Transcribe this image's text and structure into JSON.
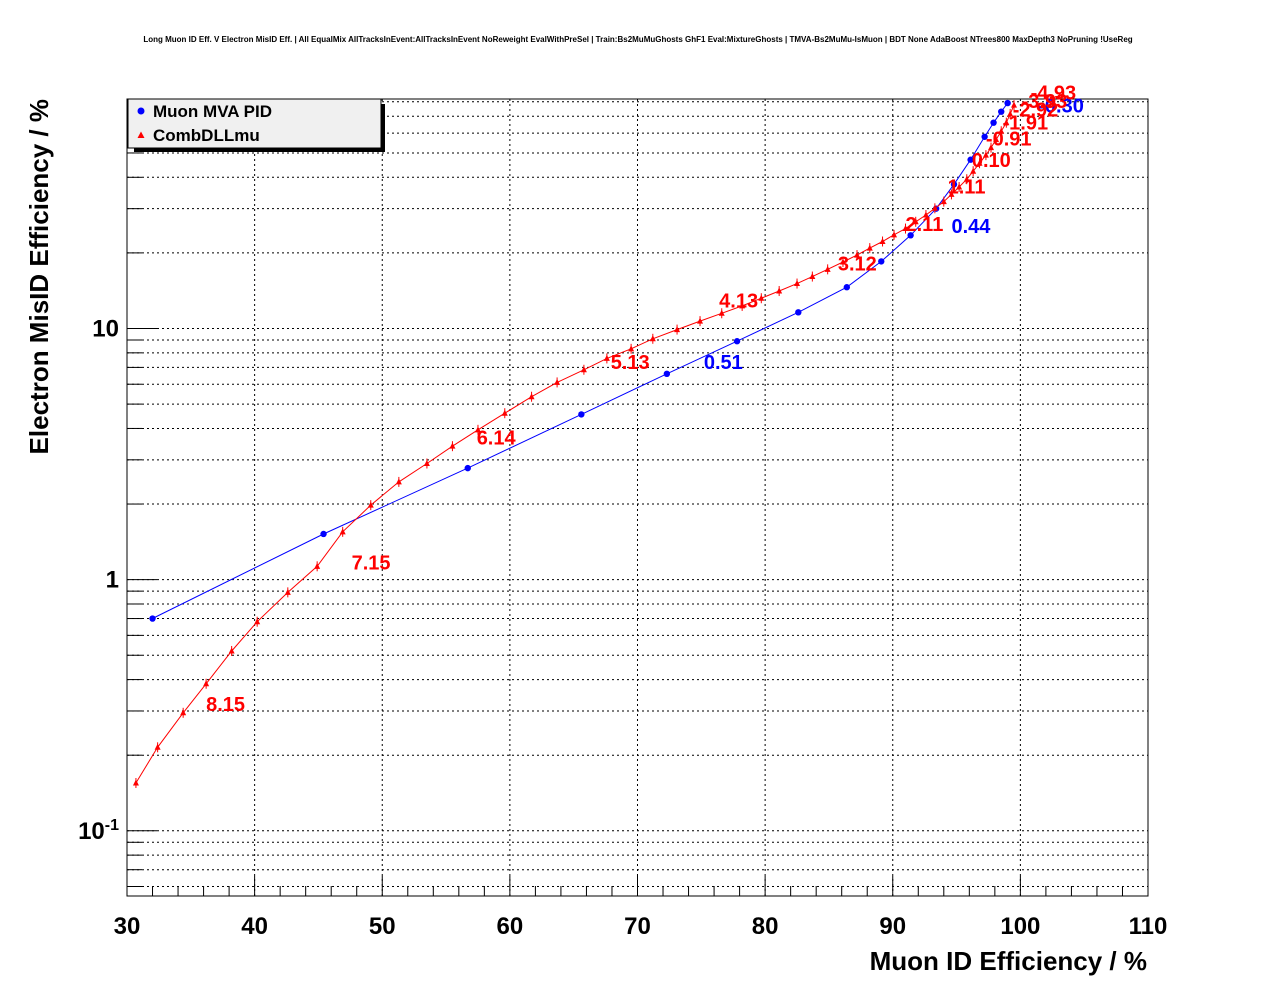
{
  "chart_data": {
    "type": "line",
    "title": "Long Muon ID Eff. V Electron MisID Eff. | All EqualMix AllTracksInEvent:AllTracksInEvent NoReweight EvalWithPreSel | Train:Bs2MuMuGhosts GhF1 Eval:MixtureGhosts | TMVA-Bs2MuMu-IsMuon | BDT None AdaBoost NTrees800 MaxDepth3 NoPruning !UseReg",
    "xlabel": "Muon ID Efficiency / %",
    "ylabel": "Electron MisID Efficiency / %",
    "xlim": [
      30,
      110
    ],
    "ylim": [
      0.055,
      82
    ],
    "y_scale": "log",
    "grid": true,
    "legend_position": "top-left",
    "x_ticks": [
      "30",
      "40",
      "50",
      "60",
      "70",
      "80",
      "90",
      "100",
      "110"
    ],
    "y_ticks": [
      {
        "value": 0.1,
        "base": "10",
        "exp": "-1"
      },
      {
        "value": 1,
        "base": "1",
        "exp": ""
      },
      {
        "value": 10,
        "base": "10",
        "exp": ""
      }
    ],
    "series": [
      {
        "name": "Muon MVA PID",
        "color": "#0000ff",
        "marker": "circle",
        "x": [
          32.0,
          45.4,
          56.7,
          65.6,
          72.3,
          77.8,
          82.6,
          86.4,
          89.1,
          91.4,
          93.4,
          94.8,
          96.1,
          97.2,
          97.9,
          98.5,
          99.0
        ],
        "y": [
          0.7,
          1.52,
          2.78,
          4.55,
          6.6,
          8.9,
          11.6,
          14.6,
          18.5,
          23.5,
          30.0,
          37.5,
          47.0,
          58.0,
          66.0,
          73.0,
          79.0
        ],
        "cut_labels": [
          {
            "text": "0.51",
            "x": 75.2,
            "y": 6.9
          },
          {
            "text": "0.44",
            "x": 94.6,
            "y": 24.0
          },
          {
            "text": "-0.30",
            "x": 101.4,
            "y": 72.5
          }
        ]
      },
      {
        "name": "CombDLLmu",
        "color": "#ff0000",
        "marker": "triangle",
        "x": [
          30.7,
          32.4,
          34.4,
          36.2,
          38.2,
          40.2,
          42.6,
          44.9,
          46.9,
          49.1,
          51.3,
          53.5,
          55.5,
          57.5,
          59.6,
          61.7,
          63.7,
          65.8,
          67.6,
          69.5,
          71.2,
          73.1,
          74.9,
          76.6,
          78.2,
          79.7,
          81.1,
          82.5,
          83.7,
          84.9,
          86.1,
          87.2,
          88.2,
          89.2,
          90.1,
          91.0,
          91.8,
          92.6,
          93.3,
          94.0,
          94.6,
          95.2,
          95.8,
          96.3,
          96.8,
          97.3,
          97.7,
          98.1,
          98.5,
          98.9,
          99.2,
          99.5
        ],
        "y": [
          0.155,
          0.215,
          0.295,
          0.385,
          0.52,
          0.68,
          0.89,
          1.13,
          1.55,
          1.98,
          2.45,
          2.9,
          3.4,
          3.95,
          4.6,
          5.35,
          6.1,
          6.85,
          7.6,
          8.3,
          9.1,
          9.9,
          10.7,
          11.5,
          12.3,
          13.2,
          14.1,
          15.1,
          16.1,
          17.2,
          18.4,
          19.6,
          20.9,
          22.2,
          23.6,
          25.0,
          26.6,
          28.3,
          30.1,
          32.0,
          34.2,
          36.6,
          39.3,
          42.3,
          45.5,
          49.0,
          52.5,
          56.5,
          61.0,
          66.0,
          71.5,
          77.5
        ],
        "cut_labels": [
          {
            "text": "8.15",
            "x": 36.2,
            "y": 0.3
          },
          {
            "text": "7.15",
            "x": 47.6,
            "y": 1.1
          },
          {
            "text": "6.14",
            "x": 57.4,
            "y": 3.45
          },
          {
            "text": "5.13",
            "x": 67.9,
            "y": 6.9
          },
          {
            "text": "4.13",
            "x": 76.4,
            "y": 12.1
          },
          {
            "text": "3.12",
            "x": 85.7,
            "y": 17.0
          },
          {
            "text": "2.11",
            "x": 91.0,
            "y": 24.5
          },
          {
            "text": "1.11",
            "x": 94.3,
            "y": 34.5
          },
          {
            "text": "0.10",
            "x": 96.2,
            "y": 44.0
          },
          {
            "text": "-0.91",
            "x": 97.3,
            "y": 53.5
          },
          {
            "text": "-1.91",
            "x": 98.6,
            "y": 62.0
          },
          {
            "text": "-2.92",
            "x": 99.4,
            "y": 70.0
          },
          {
            "text": "-3.93",
            "x": 100.1,
            "y": 75.5
          },
          {
            "text": "-4.93",
            "x": 100.8,
            "y": 81.5
          }
        ]
      }
    ]
  }
}
